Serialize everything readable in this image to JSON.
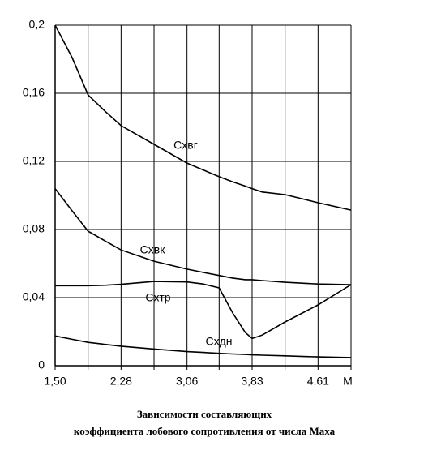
{
  "chart_data": {
    "type": "line",
    "title": [
      "Зависимости составляющих",
      "коэффициента лобового сопротивления от числа Маха"
    ],
    "x_label": "M",
    "x": [
      1.5,
      1.7,
      1.89,
      2.1,
      2.28,
      2.67,
      3.06,
      3.25,
      3.44,
      3.6,
      3.75,
      3.83,
      3.95,
      4.22,
      4.61,
      5.0
    ],
    "series": [
      {
        "name": "Схвг",
        "color": "#000000",
        "values": [
          0.2,
          0.181,
          0.159,
          0.149,
          0.141,
          0.13,
          0.119,
          0.115,
          0.111,
          0.108,
          0.1055,
          0.104,
          0.102,
          0.1005,
          0.0957,
          0.0914
        ]
      },
      {
        "name": "Схвк",
        "color": "#000000",
        "values": [
          0.104,
          0.091,
          0.079,
          0.073,
          0.068,
          0.0614,
          0.0567,
          0.0548,
          0.053,
          0.0515,
          0.0505,
          0.0505,
          0.05,
          0.049,
          0.048,
          0.0476
        ]
      },
      {
        "name": "Схтр",
        "color": "#000000",
        "values": [
          0.047,
          0.047,
          0.047,
          0.0473,
          0.0478,
          0.0495,
          0.0492,
          0.048,
          0.0457,
          0.031,
          0.0195,
          0.016,
          0.018,
          0.0257,
          0.0357,
          0.0476
        ]
      },
      {
        "name": "Схдн",
        "color": "#000000",
        "values": [
          0.0175,
          0.0155,
          0.0137,
          0.0125,
          0.0115,
          0.0098,
          0.0083,
          0.0078,
          0.0073,
          0.0069,
          0.0066,
          0.0064,
          0.0062,
          0.0058,
          0.0052,
          0.0048
        ]
      }
    ],
    "xlim": [
      1.5,
      5.0
    ],
    "xticks": [
      {
        "value": 1.5,
        "label": "1,50"
      },
      {
        "value": 1.89,
        "label": null
      },
      {
        "value": 2.28,
        "label": "2,28"
      },
      {
        "value": 2.67,
        "label": null
      },
      {
        "value": 3.06,
        "label": "3,06"
      },
      {
        "value": 3.44,
        "label": null
      },
      {
        "value": 3.83,
        "label": "3,83"
      },
      {
        "value": 4.22,
        "label": null
      },
      {
        "value": 4.61,
        "label": "4,61"
      },
      {
        "value": 5.0,
        "label": null
      }
    ],
    "ylim": [
      0,
      0.2
    ],
    "yticks": [
      0,
      {
        "value": 0.04,
        "label": "0,04"
      },
      {
        "value": 0.08,
        "label": "0,08"
      },
      {
        "value": 0.12,
        "label": "0,12"
      },
      {
        "value": 0.16,
        "label": "0,16"
      },
      {
        "value": 0.2,
        "label": "0,2"
      }
    ],
    "grid": true
  }
}
